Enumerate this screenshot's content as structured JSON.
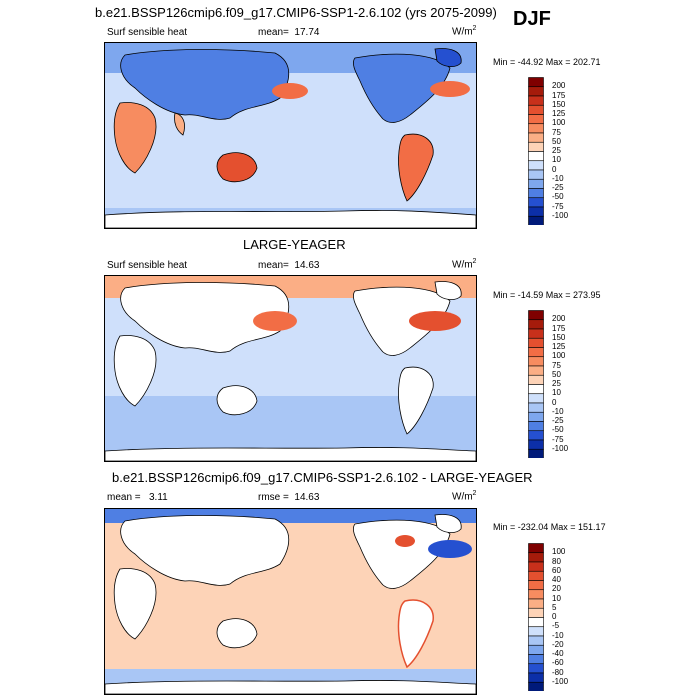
{
  "season": "DJF",
  "chart_data": [
    {
      "type": "heatmap",
      "title": "b.e21.BSSP126cmip6.f09_g17.CMIP6-SSP1-2.6.102 (yrs 2075-2099)",
      "variable": "Surf sensible heat",
      "mean_label": "mean=",
      "mean": "17.74",
      "units_base": "W/m",
      "units_exp": "2",
      "minmax_text": "Min = -44.92 Max = 202.71",
      "min": -44.92,
      "max": 202.71,
      "colorbar": {
        "ticks": [
          "200",
          "175",
          "150",
          "125",
          "100",
          "75",
          "50",
          "25",
          "10",
          "0",
          "-10",
          "-25",
          "-50",
          "-75",
          "-100"
        ],
        "colors": [
          "#7f0000",
          "#a51b0b",
          "#c8301b",
          "#e4502f",
          "#f26d45",
          "#f78c60",
          "#fbae85",
          "#fdd3b7",
          "#ffffff",
          "#cfe0fb",
          "#a9c6f5",
          "#7ea7ee",
          "#4f7fe3",
          "#2550d0",
          "#0c2fa8",
          "#001a7a"
        ]
      }
    },
    {
      "type": "heatmap",
      "title": "LARGE-YEAGER",
      "variable": "Surf sensible heat",
      "mean_label": "mean=",
      "mean": "14.63",
      "units_base": "W/m",
      "units_exp": "2",
      "minmax_text": "Min = -14.59 Max = 273.95",
      "min": -14.59,
      "max": 273.95,
      "colorbar": {
        "ticks": [
          "200",
          "175",
          "150",
          "125",
          "100",
          "75",
          "50",
          "25",
          "10",
          "0",
          "-10",
          "-25",
          "-50",
          "-75",
          "-100"
        ],
        "colors": [
          "#7f0000",
          "#a51b0b",
          "#c8301b",
          "#e4502f",
          "#f26d45",
          "#f78c60",
          "#fbae85",
          "#fdd3b7",
          "#ffffff",
          "#cfe0fb",
          "#a9c6f5",
          "#7ea7ee",
          "#4f7fe3",
          "#2550d0",
          "#0c2fa8",
          "#001a7a"
        ]
      }
    },
    {
      "type": "heatmap",
      "title": "b.e21.BSSP126cmip6.f09_g17.CMIP6-SSP1-2.6.102 - LARGE-YEAGER",
      "mean_label": "mean =",
      "mean": "3.11",
      "rmse_label": "rmse =",
      "rmse": "14.63",
      "units_base": "W/m",
      "units_exp": "2",
      "minmax_text": "Min = -232.04 Max = 151.17",
      "min": -232.04,
      "max": 151.17,
      "colorbar": {
        "ticks": [
          "100",
          "80",
          "60",
          "40",
          "20",
          "10",
          "5",
          "0",
          "-5",
          "-10",
          "-20",
          "-40",
          "-60",
          "-80",
          "-100"
        ],
        "colors": [
          "#7f0000",
          "#a51b0b",
          "#c8301b",
          "#e4502f",
          "#f26d45",
          "#f78c60",
          "#fbae85",
          "#fdd3b7",
          "#ffffff",
          "#cfe0fb",
          "#a9c6f5",
          "#7ea7ee",
          "#4f7fe3",
          "#2550d0",
          "#0c2fa8",
          "#001a7a"
        ]
      }
    }
  ]
}
